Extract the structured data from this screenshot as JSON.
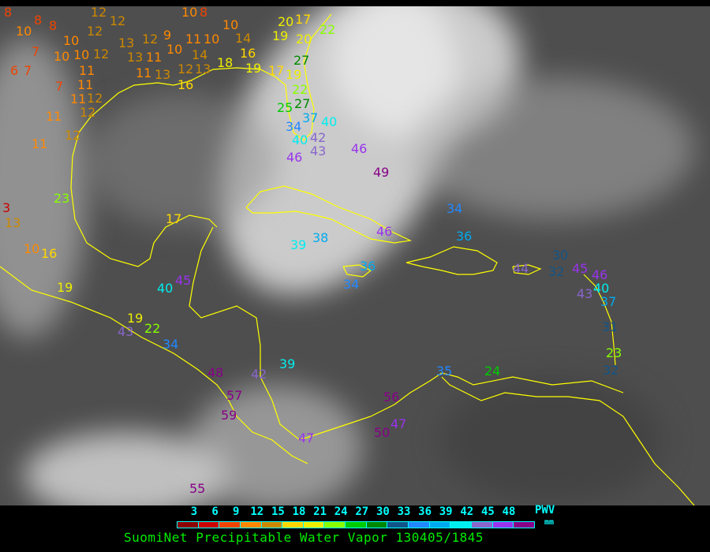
{
  "caption": "SuomiNet Precipitable Water Vapor 130405/1845",
  "legend": {
    "unit_label": "PWV",
    "unit_sub": "mm",
    "ticks": [
      "3",
      "6",
      "9",
      "12",
      "15",
      "18",
      "21",
      "24",
      "27",
      "30",
      "33",
      "36",
      "39",
      "42",
      "45",
      "48"
    ],
    "colors": [
      "#8b0000",
      "#cc0000",
      "#ee4400",
      "#ff8800",
      "#cc8800",
      "#ffd700",
      "#eeee00",
      "#88ff00",
      "#00cc00",
      "#008800",
      "#115588",
      "#2288ff",
      "#00aaee",
      "#00eeee",
      "#8866cc",
      "#9933ee",
      "#880088"
    ]
  },
  "coastline_color": "#ffff00",
  "stations": [
    "8",
    "8",
    "10",
    "7",
    "6",
    "7",
    "8",
    "10",
    "10",
    "10",
    "12",
    "11",
    "11",
    "7",
    "11",
    "12",
    "12",
    "11",
    "12",
    "11",
    "12",
    "12",
    "12",
    "13",
    "12",
    "9",
    "10",
    "13",
    "11",
    "11",
    "13",
    "12",
    "13",
    "10",
    "8",
    "11",
    "10",
    "10",
    "14",
    "16",
    "14",
    "18",
    "19",
    "16",
    "17",
    "19",
    "22",
    "20",
    "17",
    "20",
    "19",
    "22",
    "27",
    "27",
    "25",
    "37",
    "40",
    "34",
    "40",
    "42",
    "43",
    "46",
    "46",
    "49",
    "34",
    "46",
    "36",
    "38",
    "39",
    "36",
    "34",
    "44",
    "30",
    "32",
    "45",
    "46",
    "40",
    "43",
    "37",
    "31",
    "23",
    "32",
    "24",
    "35",
    "56",
    "50",
    "47",
    "47",
    "42",
    "48",
    "57",
    "59",
    "39",
    "55",
    "34",
    "22",
    "19",
    "43",
    "40",
    "45",
    "17",
    "23",
    "3",
    "13",
    "10",
    "16",
    "19"
  ]
}
